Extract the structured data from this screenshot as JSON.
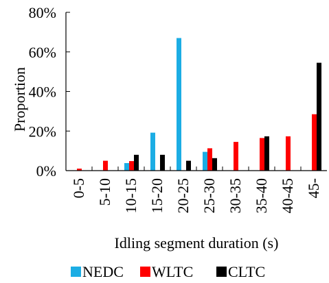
{
  "chart_data": {
    "type": "bar",
    "categories": [
      "0-5",
      "5-10",
      "10-15",
      "15-20",
      "20-25",
      "25-30",
      "30-35",
      "35-40",
      "40-45",
      "45-"
    ],
    "series": [
      {
        "name": "NEDC",
        "color": "#1CADE4",
        "values": [
          0,
          0,
          3.8,
          19.2,
          67.0,
          9.5,
          0,
          0,
          0,
          0
        ]
      },
      {
        "name": "WLTC",
        "color": "#FF0000",
        "values": [
          1.0,
          5.0,
          4.8,
          0,
          0,
          11.3,
          14.5,
          16.5,
          17.3,
          28.5
        ]
      },
      {
        "name": "CLTC",
        "color": "#000000",
        "values": [
          0,
          0,
          8.0,
          8.0,
          5.0,
          6.3,
          0,
          17.3,
          0,
          54.5
        ]
      }
    ],
    "title": "",
    "xlabel": "Idling segment duration (s)",
    "ylabel": "Proportion",
    "ylim": [
      0,
      80
    ],
    "yticks": [
      "0%",
      "20%",
      "40%",
      "60%",
      "80%"
    ],
    "legend_position": "bottom",
    "grid": false
  }
}
